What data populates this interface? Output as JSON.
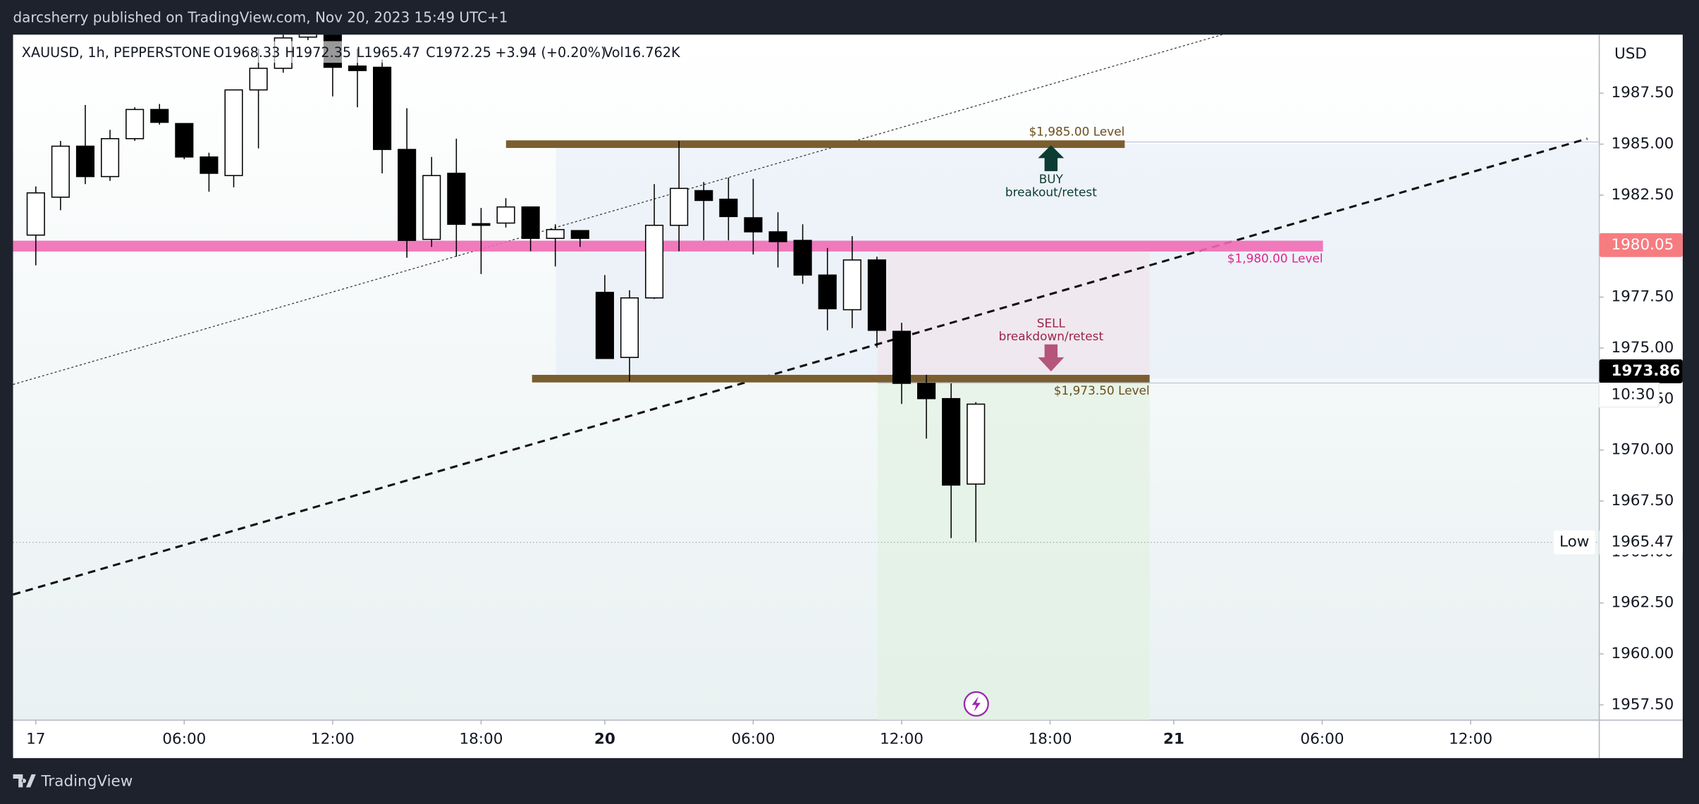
{
  "header": {
    "publisher": "darcsherry published on TradingView.com, Nov 20, 2023 15:49 UTC+1"
  },
  "chart_data": {
    "type": "candlestick",
    "symbol": "XAUUSD, 1h, PEPPERSTONE",
    "legend_values": [
      "O1968.33",
      "H1972.35",
      "L1965.47",
      "C1972.25",
      "+3.94 (+0.20%)",
      "Vol16.762K"
    ],
    "currency": "USD",
    "open": [
      1980.54,
      1982.4,
      1984.9,
      1983.41,
      1985.27,
      1986.7,
      1986.01,
      1984.37,
      1983.46,
      1987.66,
      1988.72,
      1990.25,
      1990.4,
      1988.83,
      1988.77,
      1984.74,
      1980.33,
      1983.57,
      1981.1,
      1981.13,
      1981.92,
      1980.38,
      1980.76,
      1977.73,
      1974.54,
      1977.46,
      1981.02,
      1982.72,
      1982.3,
      1981.39,
      1980.7,
      1980.28,
      1978.58,
      1976.88,
      1979.32,
      1975.82,
      1973.27,
      1972.52,
      1968.33
    ],
    "high": [
      1982.93,
      1985.16,
      1986.92,
      1985.7,
      1986.81,
      1986.97,
      1986.01,
      1984.58,
      1987.66,
      1989.68,
      1990.37,
      1991.0,
      1991.0,
      1989.68,
      1989.15,
      1986.76,
      1984.37,
      1985.27,
      1981.87,
      1982.35,
      1981.92,
      1981.07,
      1980.76,
      1978.58,
      1977.83,
      1983.04,
      1985.16,
      1983.14,
      1983.36,
      1983.3,
      1981.66,
      1981.07,
      1979.91,
      1980.49,
      1979.48,
      1976.24,
      1973.69,
      1973.27,
      1972.35
    ],
    "low": [
      1979.06,
      1981.76,
      1983.04,
      1983.2,
      1985.16,
      1985.96,
      1984.26,
      1982.67,
      1982.88,
      1984.79,
      1988.5,
      1990.1,
      1987.34,
      1986.81,
      1983.57,
      1979.43,
      1979.96,
      1979.48,
      1978.63,
      1980.91,
      1979.75,
      1979.0,
      1979.96,
      1974.49,
      1973.37,
      1977.41,
      1979.75,
      1980.28,
      1980.28,
      1979.59,
      1978.95,
      1978.15,
      1975.87,
      1975.98,
      1975.02,
      1972.26,
      1970.56,
      1965.68,
      1965.47
    ],
    "close": [
      1982.61,
      1984.9,
      1983.41,
      1985.27,
      1986.7,
      1986.07,
      1984.37,
      1983.57,
      1987.66,
      1988.72,
      1990.21,
      1990.8,
      1988.77,
      1988.61,
      1984.74,
      1980.28,
      1983.46,
      1981.07,
      1981.05,
      1981.92,
      1980.38,
      1980.81,
      1980.38,
      1974.49,
      1977.46,
      1981.02,
      1982.83,
      1982.24,
      1981.45,
      1980.7,
      1980.22,
      1978.58,
      1976.93,
      1979.32,
      1975.87,
      1973.27,
      1972.52,
      1968.28,
      1972.25
    ],
    "up_color": "#ffffff",
    "down_color": "#000000",
    "ylim": [
      1956.75,
      1990.37
    ],
    "yticks": [
      {
        "value": 1957.5,
        "label": "1957.50"
      },
      {
        "value": 1960,
        "label": "1960.00"
      },
      {
        "value": 1962.5,
        "label": "1962.50"
      },
      {
        "value": 1965,
        "label": "1965.00"
      },
      {
        "value": 1967.5,
        "label": "1967.50"
      },
      {
        "value": 1970,
        "label": "1970.00"
      },
      {
        "value": 1972.5,
        "label": "1972.50"
      },
      {
        "value": 1975,
        "label": "1975.00"
      },
      {
        "value": 1977.5,
        "label": "1977.50"
      },
      {
        "value": 1980,
        "label": "1980.00"
      },
      {
        "value": 1982.5,
        "label": "1982.50"
      },
      {
        "value": 1985,
        "label": "1985.00"
      },
      {
        "value": 1987.5,
        "label": "1987.50"
      }
    ],
    "xlim": [
      -0.92,
      63.2
    ],
    "xticks": [
      {
        "value": 0,
        "label": "17"
      },
      {
        "value": 6,
        "label": "06:00"
      },
      {
        "value": 12,
        "label": "12:00"
      },
      {
        "value": 18,
        "label": "18:00"
      },
      {
        "value": 23,
        "label": "20"
      },
      {
        "value": 29,
        "label": "06:00"
      },
      {
        "value": 35,
        "label": "12:00"
      },
      {
        "value": 41,
        "label": "18:00"
      },
      {
        "value": 46,
        "label": "21"
      },
      {
        "value": 52,
        "label": "06:00"
      },
      {
        "value": 58,
        "label": "12:00"
      }
    ],
    "levels": [
      {
        "label": "$1,985.00 Level",
        "value": 1985,
        "color": "#7b5e2f"
      },
      {
        "label": "$1,980.00 Level",
        "value": 1980,
        "color": "#f06bb5"
      },
      {
        "label": "$1,973.50 Level",
        "value": 1973.5,
        "color": "#7b5e2f"
      }
    ],
    "annotations": [
      {
        "title": "BUY",
        "text": "breakout/retest",
        "color": "#0b3d32"
      },
      {
        "title": "SELL",
        "text": "breakdown/retest",
        "color": "#9c2447"
      }
    ],
    "price_tags": [
      {
        "value": 1980.05,
        "color": "#f77c80"
      },
      {
        "value": 1973.86,
        "color": "#000000"
      }
    ],
    "countdown": "10:30",
    "low_marker": {
      "label": "Low",
      "value": 1965.47
    }
  },
  "footer": {
    "brand": "TradingView"
  }
}
